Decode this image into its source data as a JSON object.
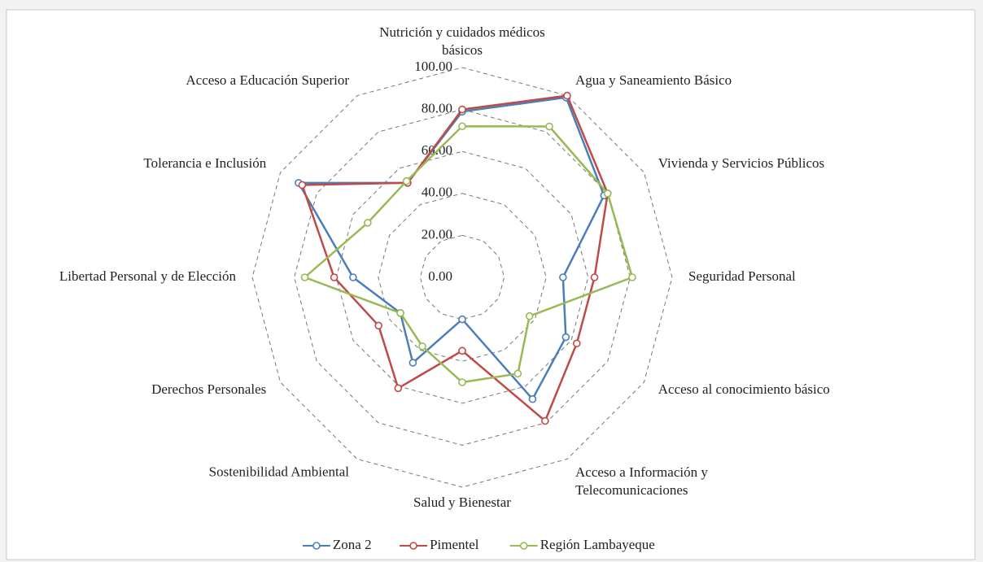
{
  "chart_data": {
    "type": "radar",
    "categories": [
      "Nutrición y cuidados médicos básicos",
      "Agua y Saneamiento Básico",
      "Vivienda y Servicios Públicos",
      "Seguridad Personal",
      "Acceso al conocimiento básico",
      "Acceso a Información y Telecomunicaciones",
      "Salud y Bienestar",
      "Sostenibilidad Ambiental",
      "Derechos Personales",
      "Libertad Personal y de Elección",
      "Tolerancia e Inclusión",
      "Acceso a Educación Superior"
    ],
    "series": [
      {
        "name": "Zona 2",
        "color": "#4a7ebb",
        "values": [
          79,
          99,
          78,
          48,
          57,
          67,
          20,
          47,
          34,
          52,
          90,
          52
        ]
      },
      {
        "name": "Pimentel",
        "color": "#be4b48",
        "values": [
          80,
          100,
          80,
          63,
          63,
          79,
          35,
          61,
          46,
          61,
          88,
          52
        ]
      },
      {
        "name": "Región Lambayeque",
        "color": "#98b954",
        "values": [
          72,
          83,
          80,
          81,
          37,
          53,
          50,
          38,
          34,
          75,
          52,
          53
        ]
      }
    ],
    "ylim": [
      0,
      100
    ],
    "yticks": [
      {
        "value": 0,
        "label": "0.00"
      },
      {
        "value": 20,
        "label": "20.00"
      },
      {
        "value": 40,
        "label": "40.00"
      },
      {
        "value": 60,
        "label": "60.00"
      },
      {
        "value": 80,
        "label": "80.00"
      },
      {
        "value": 100,
        "label": "100.00"
      }
    ],
    "grid": true,
    "legend": "bottom"
  }
}
